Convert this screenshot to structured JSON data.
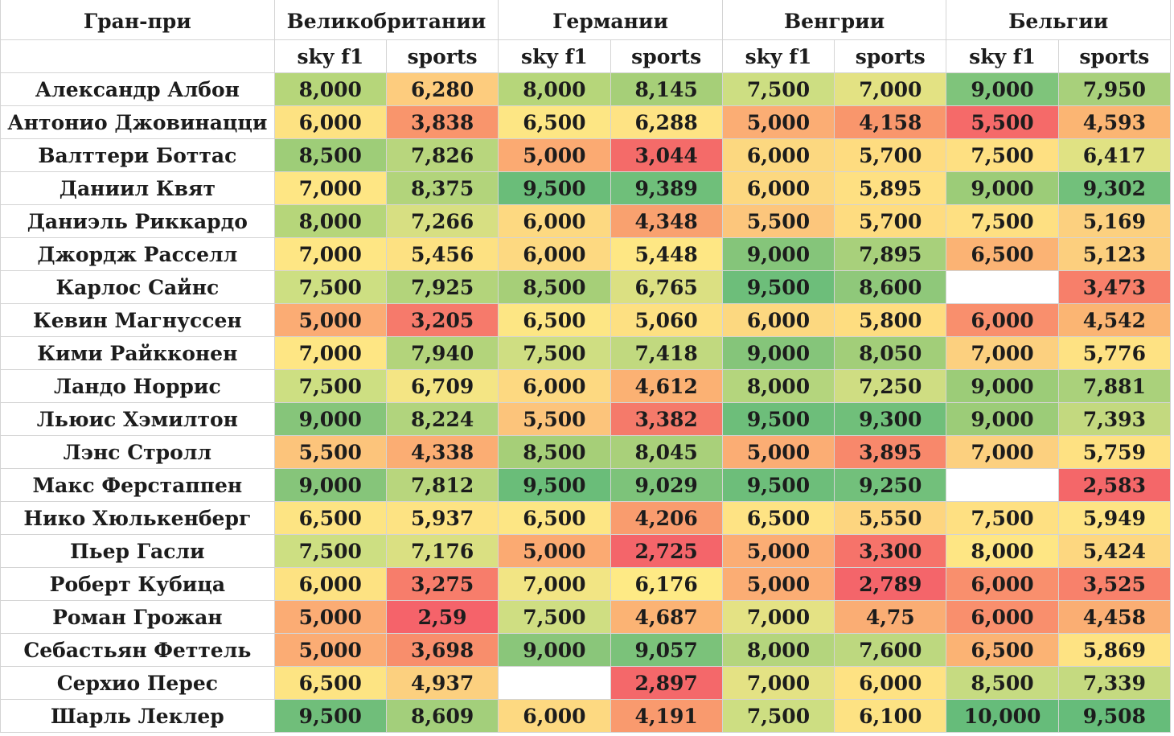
{
  "header": {
    "corner_label": "Гран-при",
    "grand_prix": [
      "Великобритании",
      "Германии",
      "Венгрии",
      "Бельгии"
    ],
    "sub_columns": [
      "sky f1",
      "sports",
      "sky f1",
      "sports",
      "sky f1",
      "sports",
      "sky f1",
      "sports"
    ]
  },
  "rows": [
    {
      "driver": "Александр Албон",
      "cells": [
        {
          "text": "8,000",
          "color": "#b6d67a"
        },
        {
          "text": "6,280",
          "color": "#fdcc7e"
        },
        {
          "text": "8,000",
          "color": "#b6d67a"
        },
        {
          "text": "8,145",
          "color": "#a6cf78"
        },
        {
          "text": "7,500",
          "color": "#cdde82"
        },
        {
          "text": "7,000",
          "color": "#e3e283"
        },
        {
          "text": "9,000",
          "color": "#7fc47b"
        },
        {
          "text": "7,950",
          "color": "#a8d07b"
        }
      ]
    },
    {
      "driver": "Антонио Джовинацци",
      "cells": [
        {
          "text": "6,000",
          "color": "#fde282"
        },
        {
          "text": "3,838",
          "color": "#f9956c"
        },
        {
          "text": "6,500",
          "color": "#fde684"
        },
        {
          "text": "6,288",
          "color": "#fee384"
        },
        {
          "text": "5,000",
          "color": "#fbad74"
        },
        {
          "text": "4,158",
          "color": "#f9966c"
        },
        {
          "text": "5,500",
          "color": "#f56a69"
        },
        {
          "text": "4,593",
          "color": "#fbb573"
        }
      ]
    },
    {
      "driver": "Валттери Боттас",
      "cells": [
        {
          "text": "8,500",
          "color": "#9ecd78"
        },
        {
          "text": "7,826",
          "color": "#b8d67d"
        },
        {
          "text": "5,000",
          "color": "#fbaa72"
        },
        {
          "text": "3,044",
          "color": "#f46b69"
        },
        {
          "text": "6,000",
          "color": "#fcd880"
        },
        {
          "text": "5,700",
          "color": "#fedc80"
        },
        {
          "text": "7,500",
          "color": "#fee082"
        },
        {
          "text": "6,417",
          "color": "#e0e283"
        }
      ]
    },
    {
      "driver": "Даниил Квят",
      "cells": [
        {
          "text": "7,000",
          "color": "#fee684"
        },
        {
          "text": "8,375",
          "color": "#b2d47b"
        },
        {
          "text": "9,500",
          "color": "#6abd79"
        },
        {
          "text": "9,389",
          "color": "#6fbf7a"
        },
        {
          "text": "6,000",
          "color": "#fcd880"
        },
        {
          "text": "5,895",
          "color": "#fee082"
        },
        {
          "text": "9,000",
          "color": "#9ccc78"
        },
        {
          "text": "9,302",
          "color": "#72c07b"
        }
      ]
    },
    {
      "driver": "Даниэль Риккардо",
      "cells": [
        {
          "text": "8,000",
          "color": "#b6d67a"
        },
        {
          "text": "7,266",
          "color": "#d7df82"
        },
        {
          "text": "6,000",
          "color": "#fdd981"
        },
        {
          "text": "4,348",
          "color": "#f9a16f"
        },
        {
          "text": "5,500",
          "color": "#fcc67c"
        },
        {
          "text": "5,700",
          "color": "#fedc80"
        },
        {
          "text": "7,500",
          "color": "#fee082"
        },
        {
          "text": "5,169",
          "color": "#fcd07f"
        }
      ]
    },
    {
      "driver": "Джордж Расселл",
      "cells": [
        {
          "text": "7,000",
          "color": "#fee684"
        },
        {
          "text": "5,456",
          "color": "#fde182"
        },
        {
          "text": "6,000",
          "color": "#fdd981"
        },
        {
          "text": "5,448",
          "color": "#fee784"
        },
        {
          "text": "9,000",
          "color": "#85c57a"
        },
        {
          "text": "7,895",
          "color": "#a8d07b"
        },
        {
          "text": "6,500",
          "color": "#fbb374"
        },
        {
          "text": "5,123",
          "color": "#fccf7e"
        }
      ]
    },
    {
      "driver": "Карлос Сайнс",
      "cells": [
        {
          "text": "7,500",
          "color": "#cddf82"
        },
        {
          "text": "7,925",
          "color": "#b3d47b"
        },
        {
          "text": "8,500",
          "color": "#a6cf78"
        },
        {
          "text": "6,765",
          "color": "#dbe082"
        },
        {
          "text": "9,500",
          "color": "#6dbe7a"
        },
        {
          "text": "8,600",
          "color": "#8fc87a"
        },
        {
          "text": "",
          "color": "#ffffff"
        },
        {
          "text": "3,473",
          "color": "#f77f6a"
        }
      ]
    },
    {
      "driver": "Кевин Магнуссен",
      "cells": [
        {
          "text": "5,000",
          "color": "#fbac74"
        },
        {
          "text": "3,205",
          "color": "#f67a6b"
        },
        {
          "text": "6,500",
          "color": "#fde684"
        },
        {
          "text": "5,060",
          "color": "#fde082"
        },
        {
          "text": "6,000",
          "color": "#fcd880"
        },
        {
          "text": "5,800",
          "color": "#fedd80"
        },
        {
          "text": "6,000",
          "color": "#f98f6d"
        },
        {
          "text": "4,542",
          "color": "#fbb573"
        }
      ]
    },
    {
      "driver": "Кими Райкконен",
      "cells": [
        {
          "text": "7,000",
          "color": "#fee684"
        },
        {
          "text": "7,940",
          "color": "#b3d47b"
        },
        {
          "text": "7,500",
          "color": "#cfde82"
        },
        {
          "text": "7,418",
          "color": "#c1d97f"
        },
        {
          "text": "9,000",
          "color": "#85c57a"
        },
        {
          "text": "8,050",
          "color": "#a2ce79"
        },
        {
          "text": "7,000",
          "color": "#fcd07f"
        },
        {
          "text": "5,776",
          "color": "#fee283"
        }
      ]
    },
    {
      "driver": "Ландо Норрис",
      "cells": [
        {
          "text": "7,500",
          "color": "#cddf82"
        },
        {
          "text": "6,709",
          "color": "#f4e584"
        },
        {
          "text": "6,000",
          "color": "#fdd981"
        },
        {
          "text": "4,612",
          "color": "#fbb173"
        },
        {
          "text": "8,000",
          "color": "#b4d57d"
        },
        {
          "text": "7,250",
          "color": "#cfdd82"
        },
        {
          "text": "9,000",
          "color": "#9ccc78"
        },
        {
          "text": "7,881",
          "color": "#aad17b"
        }
      ]
    },
    {
      "driver": "Льюис Хэмилтон",
      "cells": [
        {
          "text": "9,000",
          "color": "#86c57a"
        },
        {
          "text": "8,224",
          "color": "#b1d47d"
        },
        {
          "text": "5,500",
          "color": "#fcc47b"
        },
        {
          "text": "3,382",
          "color": "#f57a6a"
        },
        {
          "text": "9,500",
          "color": "#6dbe7a"
        },
        {
          "text": "9,300",
          "color": "#70bf7a"
        },
        {
          "text": "9,000",
          "color": "#9ccc78"
        },
        {
          "text": "7,393",
          "color": "#c3d97f"
        }
      ]
    },
    {
      "driver": "Лэнс Стролл",
      "cells": [
        {
          "text": "5,500",
          "color": "#fcc47b"
        },
        {
          "text": "4,338",
          "color": "#fbad73"
        },
        {
          "text": "8,500",
          "color": "#a6cf78"
        },
        {
          "text": "8,045",
          "color": "#a9d07a"
        },
        {
          "text": "5,000",
          "color": "#fbad74"
        },
        {
          "text": "3,895",
          "color": "#f8886b"
        },
        {
          "text": "7,000",
          "color": "#fcd07f"
        },
        {
          "text": "5,759",
          "color": "#fee182"
        }
      ]
    },
    {
      "driver": "Макс Ферстаппен",
      "cells": [
        {
          "text": "9,000",
          "color": "#86c57a"
        },
        {
          "text": "7,812",
          "color": "#b8d67d"
        },
        {
          "text": "9,500",
          "color": "#6abd79"
        },
        {
          "text": "9,029",
          "color": "#7dc37a"
        },
        {
          "text": "9,500",
          "color": "#6dbe7a"
        },
        {
          "text": "9,250",
          "color": "#72c07b"
        },
        {
          "text": "",
          "color": "#ffffff"
        },
        {
          "text": "2,583",
          "color": "#f46769"
        }
      ]
    },
    {
      "driver": "Нико Хюлькенберг",
      "cells": [
        {
          "text": "6,500",
          "color": "#fde483"
        },
        {
          "text": "5,937",
          "color": "#fde383"
        },
        {
          "text": "6,500",
          "color": "#fde684"
        },
        {
          "text": "4,206",
          "color": "#f99c6e"
        },
        {
          "text": "6,500",
          "color": "#fee384"
        },
        {
          "text": "5,550",
          "color": "#fdd57f"
        },
        {
          "text": "7,500",
          "color": "#fee082"
        },
        {
          "text": "5,949",
          "color": "#fee484"
        }
      ]
    },
    {
      "driver": "Пьер Гасли",
      "cells": [
        {
          "text": "7,500",
          "color": "#cddf82"
        },
        {
          "text": "7,176",
          "color": "#dae082"
        },
        {
          "text": "5,000",
          "color": "#fbaa72"
        },
        {
          "text": "2,725",
          "color": "#f4656a"
        },
        {
          "text": "5,000",
          "color": "#fbad74"
        },
        {
          "text": "3,300",
          "color": "#f6736a"
        },
        {
          "text": "8,000",
          "color": "#fee684"
        },
        {
          "text": "5,424",
          "color": "#fdd780"
        }
      ]
    },
    {
      "driver": "Роберт Кубица",
      "cells": [
        {
          "text": "6,000",
          "color": "#fde282"
        },
        {
          "text": "3,275",
          "color": "#f77d6b"
        },
        {
          "text": "7,000",
          "color": "#f2e584"
        },
        {
          "text": "6,176",
          "color": "#feea85"
        },
        {
          "text": "5,000",
          "color": "#fbad74"
        },
        {
          "text": "2,789",
          "color": "#f4656a"
        },
        {
          "text": "6,000",
          "color": "#f98f6d"
        },
        {
          "text": "3,525",
          "color": "#f8816b"
        }
      ]
    },
    {
      "driver": "Роман Грожан",
      "cells": [
        {
          "text": "5,000",
          "color": "#fbac74"
        },
        {
          "text": "2,59",
          "color": "#f5636a"
        },
        {
          "text": "7,500",
          "color": "#cfde82"
        },
        {
          "text": "4,687",
          "color": "#fbb374"
        },
        {
          "text": "7,000",
          "color": "#e4e284"
        },
        {
          "text": "4,75",
          "color": "#faad74"
        },
        {
          "text": "6,000",
          "color": "#f98f6d"
        },
        {
          "text": "4,458",
          "color": "#faae73"
        }
      ]
    },
    {
      "driver": "Себастьян Феттель",
      "cells": [
        {
          "text": "5,000",
          "color": "#fbac74"
        },
        {
          "text": "3,698",
          "color": "#f88e6c"
        },
        {
          "text": "9,000",
          "color": "#8ac67a"
        },
        {
          "text": "9,057",
          "color": "#7bc27a"
        },
        {
          "text": "8,000",
          "color": "#b4d57d"
        },
        {
          "text": "7,600",
          "color": "#bdd87f"
        },
        {
          "text": "6,500",
          "color": "#fbb374"
        },
        {
          "text": "5,869",
          "color": "#fee383"
        }
      ]
    },
    {
      "driver": "Серхио Перес",
      "cells": [
        {
          "text": "6,500",
          "color": "#fde483"
        },
        {
          "text": "4,937",
          "color": "#fcd07f"
        },
        {
          "text": "",
          "color": "#ffffff"
        },
        {
          "text": "2,897",
          "color": "#f4686a"
        },
        {
          "text": "7,000",
          "color": "#e4e284"
        },
        {
          "text": "6,000",
          "color": "#fee283"
        },
        {
          "text": "8,500",
          "color": "#c6db81"
        },
        {
          "text": "7,339",
          "color": "#c5da80"
        }
      ]
    },
    {
      "driver": "Шарль Леклер",
      "cells": [
        {
          "text": "9,500",
          "color": "#70be7a"
        },
        {
          "text": "8,609",
          "color": "#a3cf7b"
        },
        {
          "text": "6,000",
          "color": "#fdd981"
        },
        {
          "text": "4,191",
          "color": "#f99a6e"
        },
        {
          "text": "7,500",
          "color": "#cdde82"
        },
        {
          "text": "6,100",
          "color": "#fde283"
        },
        {
          "text": "10,000",
          "color": "#66bc7a"
        },
        {
          "text": "9,508",
          "color": "#66bc7a"
        }
      ]
    }
  ]
}
